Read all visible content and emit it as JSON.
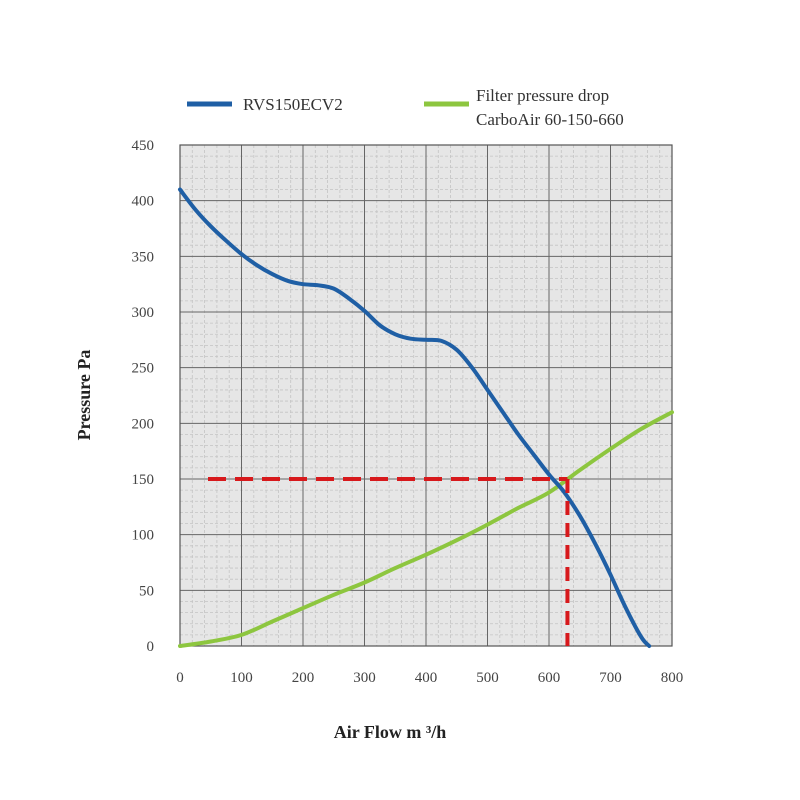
{
  "chart_data": {
    "type": "line",
    "xlabel": "Air Flow m ³/h",
    "ylabel": "Pressure Pa",
    "xlim": [
      0,
      800
    ],
    "ylim": [
      0,
      450
    ],
    "x_ticks": [
      0,
      100,
      200,
      300,
      400,
      500,
      600,
      700,
      800
    ],
    "y_ticks": [
      0,
      50,
      100,
      150,
      200,
      250,
      300,
      350,
      400,
      450
    ],
    "grid": true,
    "legend_position": "top",
    "series": [
      {
        "name": "RVS150ECV2",
        "color": "#1f5fa5",
        "points": [
          [
            0,
            410
          ],
          [
            25,
            392
          ],
          [
            50,
            377
          ],
          [
            75,
            364
          ],
          [
            100,
            352
          ],
          [
            125,
            342
          ],
          [
            150,
            334
          ],
          [
            175,
            328
          ],
          [
            200,
            325
          ],
          [
            225,
            324
          ],
          [
            250,
            321
          ],
          [
            275,
            312
          ],
          [
            300,
            301
          ],
          [
            325,
            288
          ],
          [
            350,
            280
          ],
          [
            375,
            276
          ],
          [
            400,
            275
          ],
          [
            425,
            274
          ],
          [
            450,
            266
          ],
          [
            475,
            250
          ],
          [
            500,
            230
          ],
          [
            525,
            210
          ],
          [
            550,
            190
          ],
          [
            575,
            172
          ],
          [
            600,
            154
          ],
          [
            625,
            138
          ],
          [
            650,
            117
          ],
          [
            675,
            92
          ],
          [
            700,
            64
          ],
          [
            725,
            34
          ],
          [
            750,
            8
          ],
          [
            763,
            0
          ]
        ]
      },
      {
        "name": "Filter pressure drop\nCarboAir 60-150-660",
        "color": "#8dc63f",
        "points": [
          [
            0,
            0
          ],
          [
            50,
            4
          ],
          [
            100,
            10
          ],
          [
            150,
            22
          ],
          [
            200,
            34
          ],
          [
            250,
            46
          ],
          [
            300,
            57
          ],
          [
            350,
            70
          ],
          [
            400,
            82
          ],
          [
            450,
            95
          ],
          [
            500,
            109
          ],
          [
            550,
            124
          ],
          [
            600,
            138
          ],
          [
            650,
            158
          ],
          [
            700,
            177
          ],
          [
            750,
            195
          ],
          [
            800,
            210
          ]
        ]
      }
    ],
    "operating_point": {
      "x": 630,
      "y": 150,
      "color": "#d7191c"
    }
  }
}
